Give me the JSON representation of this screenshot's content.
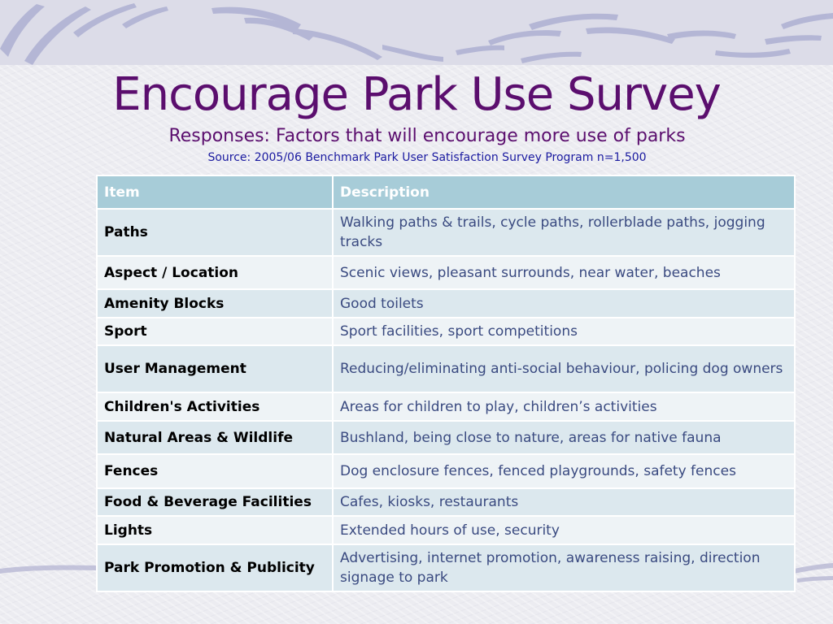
{
  "slide": {
    "title": "Encourage Park Use Survey",
    "subtitle": "Responses: Factors that will encourage more use of parks",
    "source": "Source: 2005/06 Benchmark Park User Satisfaction Survey Program  n=1,500"
  },
  "table": {
    "headers": {
      "item": "Item",
      "description": "Description"
    },
    "rows": [
      {
        "item": "Paths",
        "description": "Walking paths & trails, cycle paths, rollerblade paths, jogging tracks"
      },
      {
        "item": "Aspect / Location",
        "description": "Scenic views, pleasant surrounds, near water, beaches"
      },
      {
        "item": "Amenity Blocks",
        "description": "Good toilets"
      },
      {
        "item": "Sport",
        "description": "Sport facilities, sport competitions"
      },
      {
        "item": "User Management",
        "description": "Reducing/eliminating anti-social behaviour, policing dog owners"
      },
      {
        "item": "Children's Activities",
        "description": "Areas for children to play, children’s activities"
      },
      {
        "item": "Natural Areas & Wildlife",
        "description": "Bushland, being close to nature, areas for native fauna"
      },
      {
        "item": "Fences",
        "description": "Dog enclosure fences, fenced playgrounds, safety fences"
      },
      {
        "item": "Food & Beverage Facilities",
        "description": "Cafes, kiosks, restaurants"
      },
      {
        "item": "Lights",
        "description": "Extended hours of use, security"
      },
      {
        "item": "Park Promotion & Publicity",
        "description": "Advertising, internet promotion, awareness raising, direction signage to park"
      }
    ]
  },
  "colors": {
    "title": "#5b0e6e",
    "source": "#1a1aa0",
    "header_bg": "#a7ccd8",
    "row_bg_a": "#dce8ee",
    "row_bg_b": "#eef3f6",
    "swoosh": "#b8b8d4"
  }
}
